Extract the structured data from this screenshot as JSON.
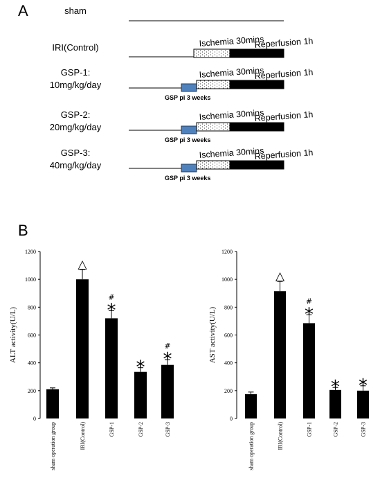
{
  "panel_a": {
    "letter": "A",
    "pretreatment_color": "#4f81bd",
    "rows": [
      {
        "label_lines": [
          "sham"
        ],
        "timeline": "sham"
      },
      {
        "label_lines": [
          "IRI(Control)"
        ],
        "timeline": "iri",
        "ischemia": "Ischemia 30mins",
        "reperfusion": "Reperfusion 1h"
      },
      {
        "label_lines": [
          "GSP-1:",
          "10mg/kg/day"
        ],
        "timeline": "gsp",
        "ischemia": "Ischemia 30mins",
        "reperfusion": "Reperfusion 1h",
        "pretreatment": "GSP pi 3 weeks"
      },
      {
        "label_lines": [
          "GSP-2:",
          "20mg/kg/day"
        ],
        "timeline": "gsp",
        "ischemia": "Ischemia 30mins",
        "reperfusion": "Reperfusion 1h",
        "pretreatment": "GSP pi 3 weeks"
      },
      {
        "label_lines": [
          "GSP-3:",
          "40mg/kg/day"
        ],
        "timeline": "gsp",
        "ischemia": "Ischemia 30mins",
        "reperfusion": "Reperfusion 1h",
        "pretreatment": "GSP pi 3 weeks"
      }
    ]
  },
  "panel_b": {
    "letter": "B"
  },
  "chart_data": [
    {
      "type": "bar",
      "title": "",
      "ylabel": "ALT activity(U/L)",
      "xlabel": "",
      "ylim": [
        0,
        1200
      ],
      "yticks": [
        0,
        200,
        400,
        600,
        800,
        1000,
        1200
      ],
      "categories": [
        "sham operation group",
        "IRI(Control)",
        "GSP-1",
        "GSP-2",
        "GSP-3"
      ],
      "values": [
        210,
        1000,
        720,
        335,
        385
      ],
      "errors": [
        10,
        70,
        55,
        30,
        38
      ],
      "annotations": [
        {
          "category": "IRI(Control)",
          "marks": [
            "△"
          ]
        },
        {
          "category": "GSP-1",
          "marks": [
            "#",
            "*"
          ]
        },
        {
          "category": "GSP-2",
          "marks": [
            "*"
          ]
        },
        {
          "category": "GSP-3",
          "marks": [
            "#",
            "*"
          ]
        }
      ],
      "bar_color": "#000000"
    },
    {
      "type": "bar",
      "title": "",
      "ylabel": "AST activity(U/L)",
      "xlabel": "",
      "ylim": [
        0,
        1200
      ],
      "yticks": [
        0,
        200,
        400,
        600,
        800,
        1000,
        1200
      ],
      "categories": [
        "sham operation group",
        "IRI(Control)",
        "GSP-1",
        "GSP-2",
        "GSP-3"
      ],
      "values": [
        175,
        915,
        685,
        205,
        200
      ],
      "errors": [
        15,
        70,
        60,
        18,
        35
      ],
      "annotations": [
        {
          "category": "IRI(Control)",
          "marks": [
            "△"
          ]
        },
        {
          "category": "GSP-1",
          "marks": [
            "#",
            "*"
          ]
        },
        {
          "category": "GSP-2",
          "marks": [
            "*"
          ]
        },
        {
          "category": "GSP-3",
          "marks": [
            "*"
          ]
        }
      ],
      "bar_color": "#000000"
    }
  ]
}
